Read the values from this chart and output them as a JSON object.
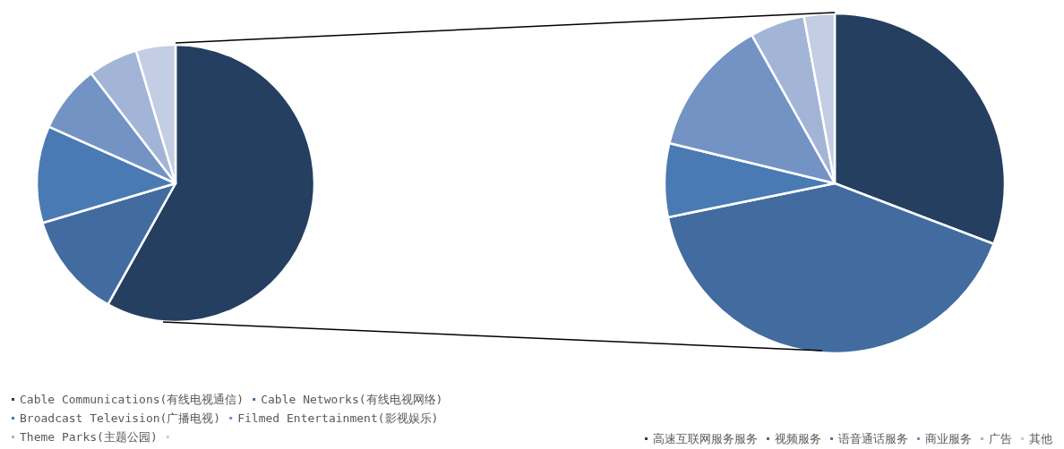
{
  "chart_data": [
    {
      "type": "pie",
      "categories": [
        "Cable Communications(有线电视通信)",
        "Cable Networks(有线电视网络)",
        "Broadcast Television(广播电视)",
        "Filmed Entertainment(影视娱乐)",
        "Theme Parks(主题公园)",
        null
      ],
      "values": [
        58.1,
        12.3,
        11.3,
        7.9,
        5.8,
        4.6
      ],
      "colors": [
        "#253f60",
        "#426ca0",
        "#4a7ab4",
        "#7393c4",
        "#a3b5d6",
        "#c3cde3"
      ],
      "legend": "bottom"
    },
    {
      "type": "pie",
      "categories": [
        "高速互联网服务服务",
        "视频服务",
        "语音通话服务",
        "商业服务",
        "广告",
        "其他"
      ],
      "values": [
        30.8,
        41.0,
        7.0,
        13.1,
        5.2,
        2.9
      ],
      "colors": [
        "#253f60",
        "#426ca0",
        "#4a7ab4",
        "#7393c4",
        "#a3b5d6",
        "#c3cde3"
      ],
      "legend": "bottom right"
    }
  ]
}
